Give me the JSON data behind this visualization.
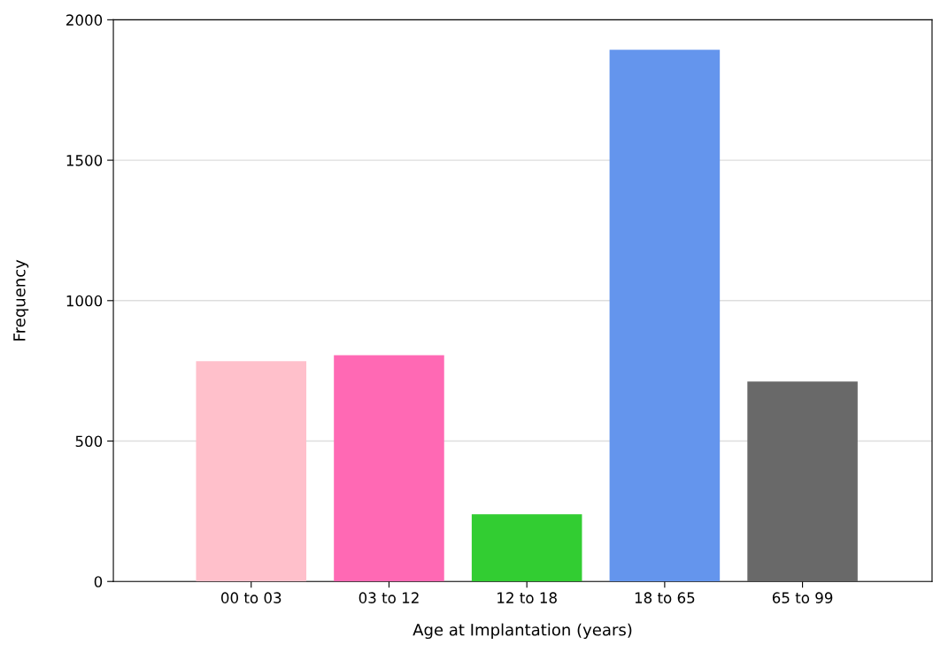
{
  "chart_data": {
    "type": "bar",
    "xlabel": "Age at Implantation (years)",
    "ylabel": "Frequency",
    "categories": [
      "00 to 03",
      "03 to 12",
      "12 to 18",
      "18 to 65",
      "65 to 99"
    ],
    "values": [
      784,
      806,
      239,
      1893,
      712
    ],
    "colors": [
      "#ffc0cb",
      "#ff69b4",
      "#32cd32",
      "#6495ed",
      "#696969"
    ],
    "ylim": [
      0,
      2000
    ],
    "yticks": [
      0,
      500,
      1000,
      1500,
      2000
    ],
    "grid": "y",
    "legend": false
  }
}
